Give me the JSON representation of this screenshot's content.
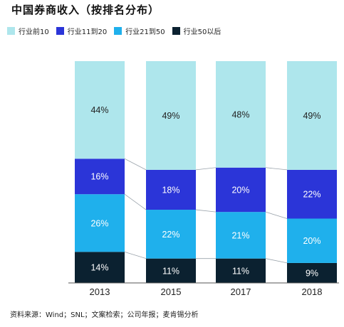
{
  "title": "中国券商收入（按排名分布）",
  "source": "资料来源：Wind；SNL；文案检索；公司年报；麦肯锡分析",
  "colors": {
    "top10": "#aee6ec",
    "rank11_20": "#2b35d8",
    "rank21_50": "#1fb0ec",
    "rank50_plus": "#0b2130"
  },
  "chart_data": {
    "type": "bar",
    "stacked": true,
    "categories": [
      "2013",
      "2015",
      "2017",
      "2018"
    ],
    "series": [
      {
        "name": "行业50以后",
        "key": "rank50_plus",
        "values": [
          14,
          11,
          11,
          9
        ],
        "labels": [
          "14%",
          "11%",
          "11%",
          "9%"
        ],
        "label_color": "#ffffff"
      },
      {
        "name": "行业21到50",
        "key": "rank21_50",
        "values": [
          26,
          22,
          21,
          20
        ],
        "labels": [
          "26%",
          "22%",
          "21%",
          "20%"
        ],
        "label_color": "#ffffff"
      },
      {
        "name": "行业11到20",
        "key": "rank11_20",
        "values": [
          16,
          18,
          20,
          22
        ],
        "labels": [
          "16%",
          "18%",
          "20%",
          "22%"
        ],
        "label_color": "#ffffff"
      },
      {
        "name": "行业前10",
        "key": "top10",
        "values": [
          44,
          49,
          48,
          49
        ],
        "labels": [
          "44%",
          "49%",
          "48%",
          "49%"
        ],
        "label_color": "#222222"
      }
    ],
    "legend_order": [
      "行业前10",
      "行业11到20",
      "行业21到50",
      "行业50以后"
    ],
    "ylim": [
      0,
      100
    ]
  }
}
